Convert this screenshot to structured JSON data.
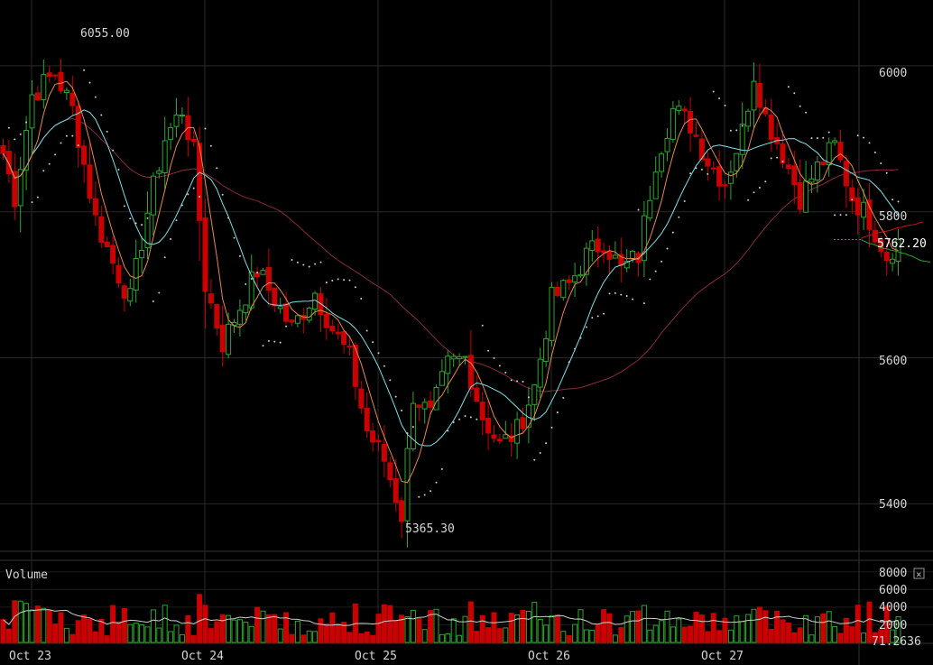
{
  "colors": {
    "background": "#000000",
    "grid": "#2a2a2a",
    "text": "#d6d6d6",
    "up": "#2aa82a",
    "down": "#cc0000",
    "ma_short": "#e8884a",
    "ma_mid": "#7ee0e8",
    "ma_long": "#8a2a3a",
    "sar": "#cccccc",
    "depth_bid": "#22aa22",
    "depth_ask": "#cc1111",
    "volume_ma": "#cccccc"
  },
  "chart_data": [
    {
      "type": "candlestick",
      "title": "",
      "ylim": [
        5335,
        6090
      ],
      "y_ticks": [
        6000,
        5800,
        5600,
        5400
      ],
      "y_tick_labels": [
        "6000",
        "5800",
        "5600",
        "5400"
      ],
      "x_labels": [
        "Oct 23",
        "Oct 24",
        "Oct 25",
        "Oct 26",
        "Oct 27"
      ],
      "candle_count": 156,
      "annotations": {
        "high_label": "6055.00",
        "low_label": "5365.30",
        "last_price_label": "5762.20"
      },
      "anchors": [
        {
          "i": 0,
          "p": 5880
        },
        {
          "i": 2,
          "p": 5820
        },
        {
          "i": 5,
          "p": 5960
        },
        {
          "i": 9,
          "p": 5990
        },
        {
          "i": 12,
          "p": 5940
        },
        {
          "i": 16,
          "p": 5790
        },
        {
          "i": 19,
          "p": 5730
        },
        {
          "i": 22,
          "p": 5680
        },
        {
          "i": 25,
          "p": 5800
        },
        {
          "i": 28,
          "p": 5900
        },
        {
          "i": 31,
          "p": 5940
        },
        {
          "i": 33,
          "p": 5880
        },
        {
          "i": 35,
          "p": 5700
        },
        {
          "i": 38,
          "p": 5620
        },
        {
          "i": 41,
          "p": 5670
        },
        {
          "i": 44,
          "p": 5720
        },
        {
          "i": 47,
          "p": 5680
        },
        {
          "i": 50,
          "p": 5640
        },
        {
          "i": 54,
          "p": 5690
        },
        {
          "i": 57,
          "p": 5640
        },
        {
          "i": 60,
          "p": 5600
        },
        {
          "i": 63,
          "p": 5500
        },
        {
          "i": 66,
          "p": 5460
        },
        {
          "i": 69,
          "p": 5385
        },
        {
          "i": 71,
          "p": 5550
        },
        {
          "i": 74,
          "p": 5520
        },
        {
          "i": 77,
          "p": 5590
        },
        {
          "i": 80,
          "p": 5600
        },
        {
          "i": 83,
          "p": 5520
        },
        {
          "i": 86,
          "p": 5480
        },
        {
          "i": 89,
          "p": 5500
        },
        {
          "i": 92,
          "p": 5560
        },
        {
          "i": 95,
          "p": 5680
        },
        {
          "i": 98,
          "p": 5700
        },
        {
          "i": 101,
          "p": 5740
        },
        {
          "i": 104,
          "p": 5760
        },
        {
          "i": 107,
          "p": 5720
        },
        {
          "i": 110,
          "p": 5740
        },
        {
          "i": 113,
          "p": 5870
        },
        {
          "i": 116,
          "p": 5940
        },
        {
          "i": 119,
          "p": 5920
        },
        {
          "i": 122,
          "p": 5870
        },
        {
          "i": 125,
          "p": 5840
        },
        {
          "i": 128,
          "p": 5910
        },
        {
          "i": 130,
          "p": 5990
        },
        {
          "i": 132,
          "p": 5930
        },
        {
          "i": 135,
          "p": 5880
        },
        {
          "i": 138,
          "p": 5820
        },
        {
          "i": 141,
          "p": 5860
        },
        {
          "i": 144,
          "p": 5890
        },
        {
          "i": 147,
          "p": 5820
        },
        {
          "i": 150,
          "p": 5790
        },
        {
          "i": 153,
          "p": 5740
        },
        {
          "i": 155,
          "p": 5762
        }
      ]
    },
    {
      "type": "bar",
      "title": "Volume",
      "ylim": [
        0,
        9200
      ],
      "y_ticks": [
        8000,
        6000,
        4000,
        2000
      ],
      "y_tick_labels": [
        "8000",
        "6000",
        "4000",
        "2000"
      ],
      "last_value_label": "71.2636",
      "close_symbol": "×"
    }
  ]
}
